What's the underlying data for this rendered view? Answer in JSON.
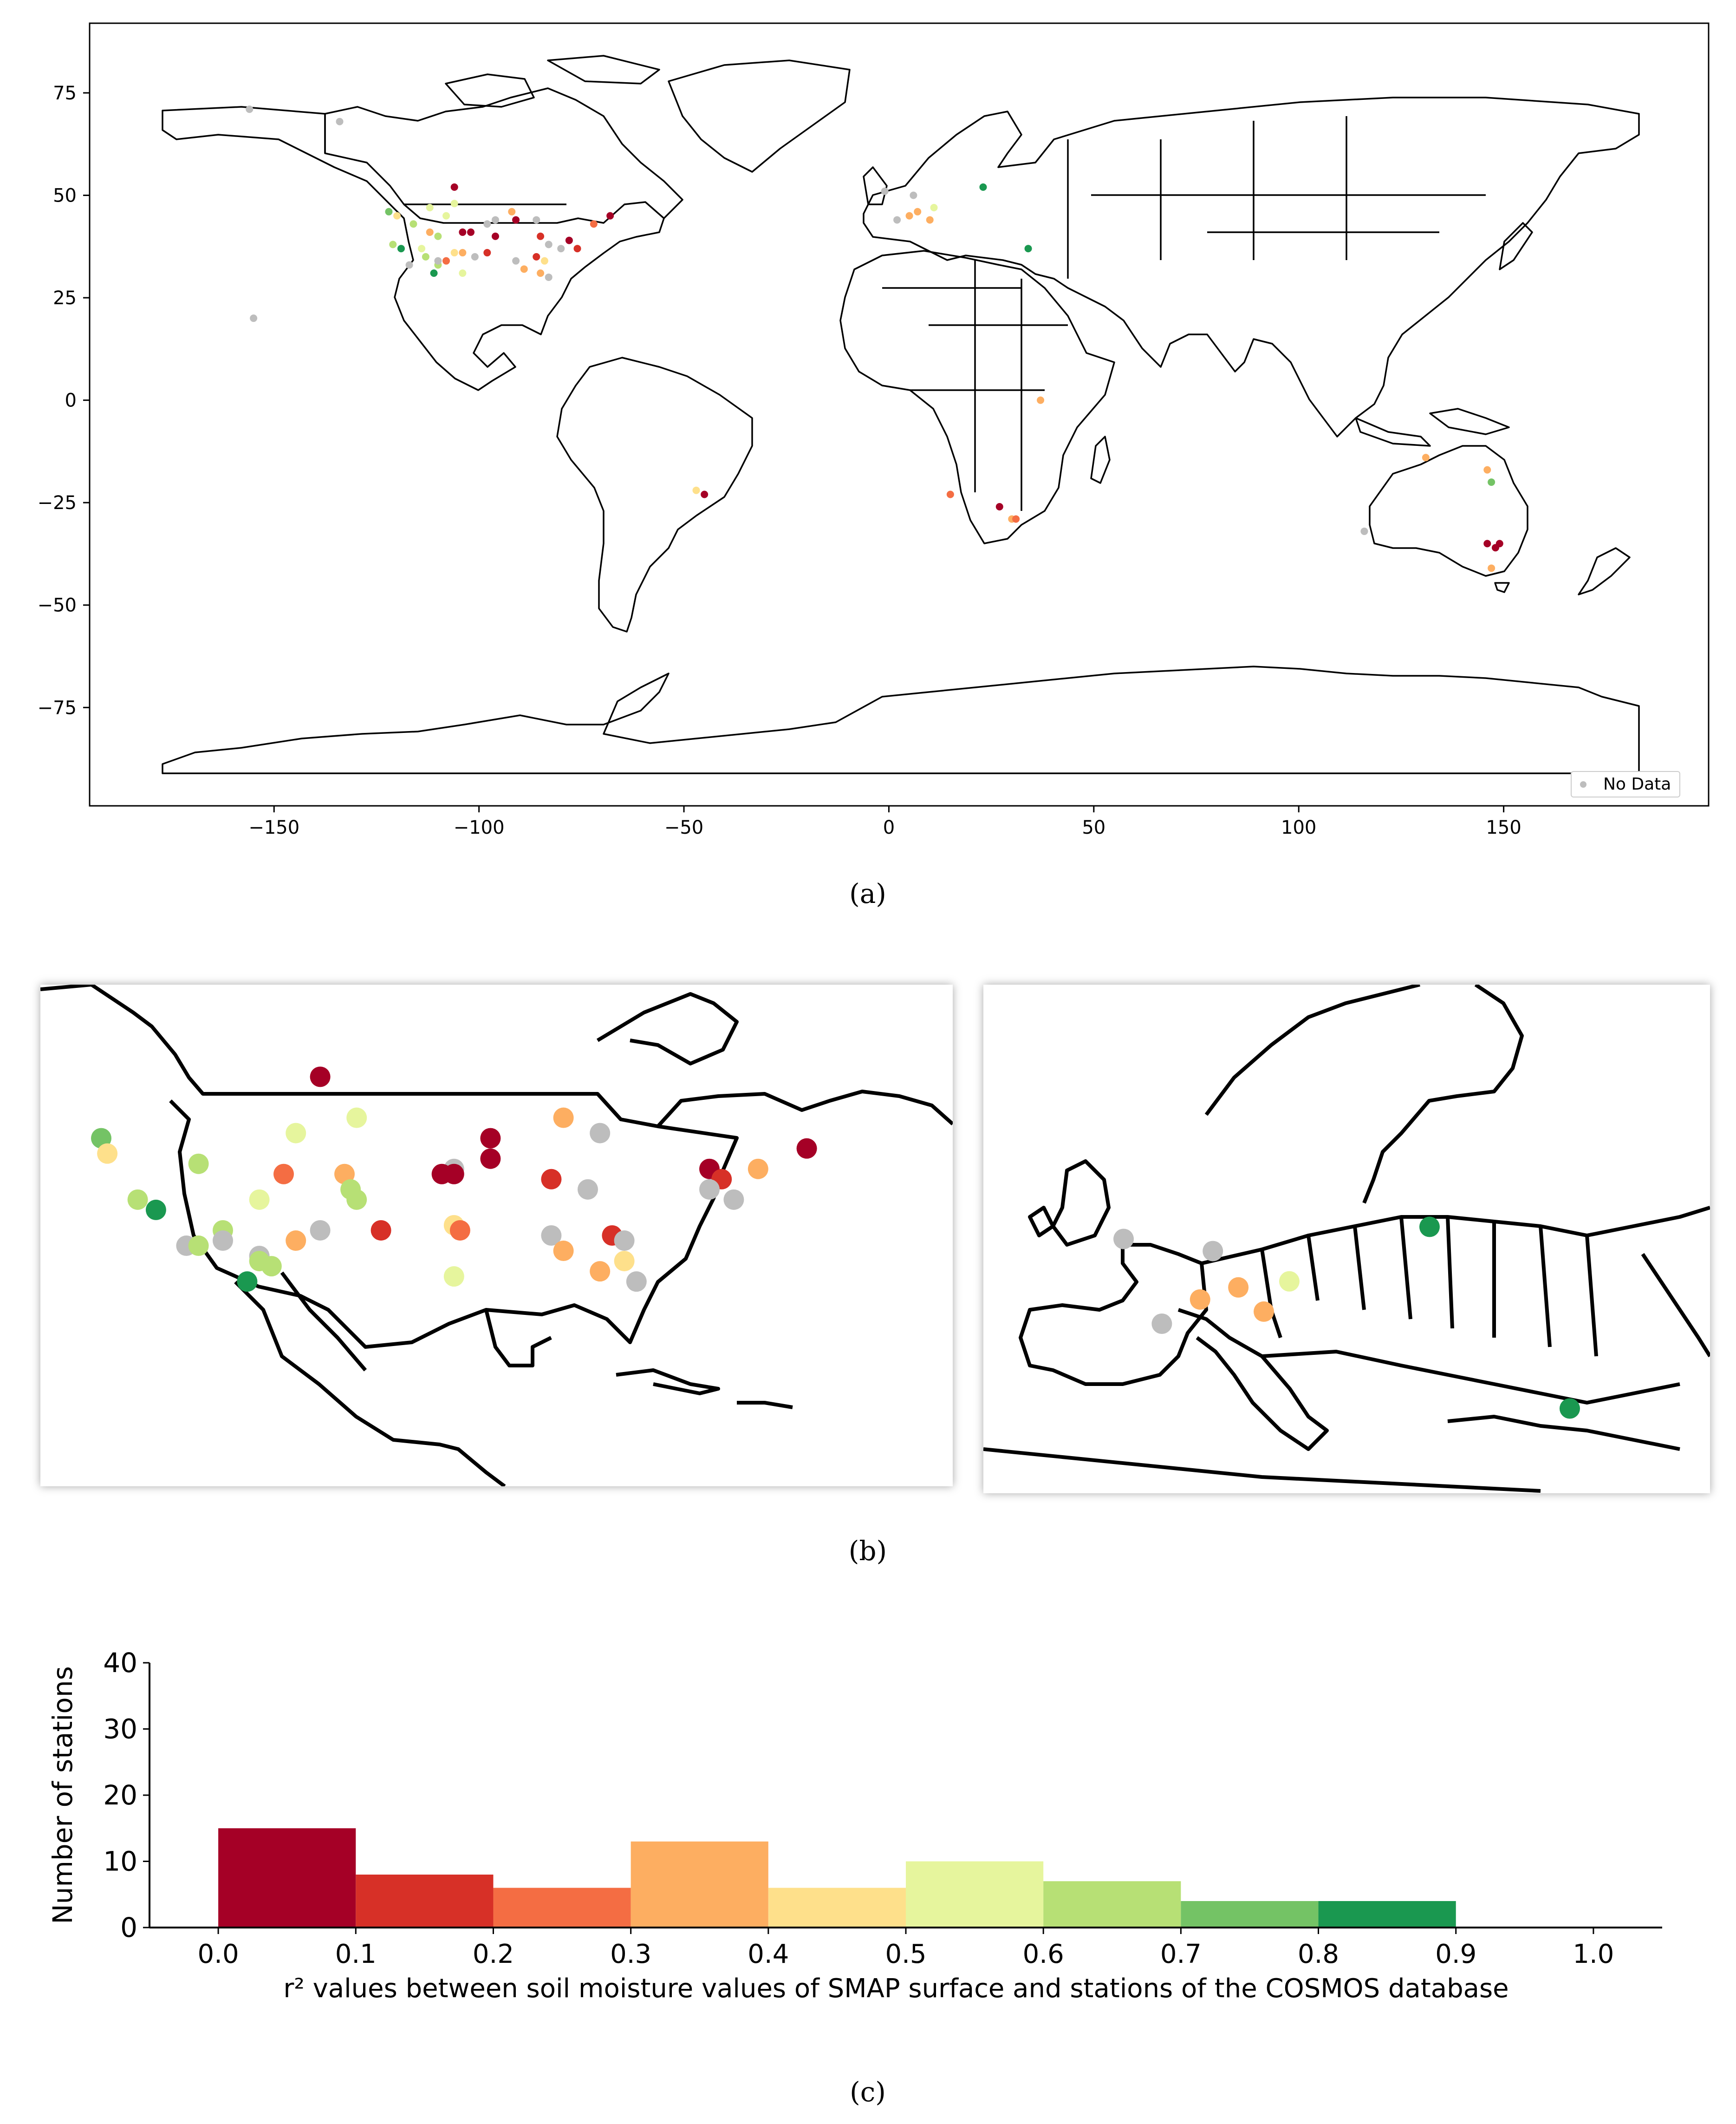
{
  "palette": [
    "#a50026",
    "#d73027",
    "#f46d43",
    "#fdae61",
    "#fee08b",
    "#e6f59d",
    "#b7e075",
    "#74c365",
    "#1a9850"
  ],
  "nodata_color": "#bdbdbd",
  "panel_a": {
    "caption": "(a)",
    "x_ticks": [
      -150,
      -100,
      -50,
      0,
      50,
      100,
      150
    ],
    "x_tick_labels": [
      "−150",
      "−100",
      "−50",
      "0",
      "50",
      "100",
      "150"
    ],
    "y_ticks": [
      75,
      50,
      25,
      0,
      -25,
      -50,
      -75
    ],
    "y_tick_labels": [
      "75",
      "50",
      "25",
      "0",
      "−25",
      "−50",
      "−75"
    ],
    "legend_label": "No Data"
  },
  "panel_b": {
    "caption": "(b)"
  },
  "panel_c": {
    "caption": "(c)"
  },
  "chart_data": [
    {
      "type": "scatter",
      "panel": "a",
      "xlim": [
        -195,
        200
      ],
      "ylim": [
        -99,
        92
      ],
      "grid": false,
      "legend": "bottom-right",
      "legend_entries": [
        "No Data"
      ],
      "points": [
        {
          "lon": -156,
          "lat": 71,
          "c": "nd"
        },
        {
          "lon": -134,
          "lat": 68,
          "c": "nd"
        },
        {
          "lon": -155,
          "lat": 20,
          "c": "nd"
        },
        {
          "lon": -106,
          "lat": 52,
          "c": 0
        },
        {
          "lon": -122,
          "lat": 46,
          "c": 7
        },
        {
          "lon": -120,
          "lat": 45,
          "c": 4
        },
        {
          "lon": -112,
          "lat": 47,
          "c": 5
        },
        {
          "lon": -106,
          "lat": 48,
          "c": 5
        },
        {
          "lon": -108,
          "lat": 45,
          "c": 5
        },
        {
          "lon": -92,
          "lat": 46,
          "c": 3
        },
        {
          "lon": -96,
          "lat": 44,
          "c": "nd"
        },
        {
          "lon": -91,
          "lat": 44,
          "c": 0
        },
        {
          "lon": -98,
          "lat": 43,
          "c": "nd"
        },
        {
          "lon": -86,
          "lat": 44,
          "c": "nd"
        },
        {
          "lon": -68,
          "lat": 45,
          "c": 0
        },
        {
          "lon": -72,
          "lat": 43,
          "c": 2
        },
        {
          "lon": -116,
          "lat": 43,
          "c": 6
        },
        {
          "lon": -112,
          "lat": 41,
          "c": 3
        },
        {
          "lon": -110,
          "lat": 40,
          "c": 6
        },
        {
          "lon": -121,
          "lat": 38,
          "c": 6
        },
        {
          "lon": -119,
          "lat": 37,
          "c": 8
        },
        {
          "lon": -114,
          "lat": 37,
          "c": 5
        },
        {
          "lon": -104,
          "lat": 41,
          "c": 0
        },
        {
          "lon": -102,
          "lat": 41,
          "c": 0
        },
        {
          "lon": -96,
          "lat": 40,
          "c": 0
        },
        {
          "lon": -85,
          "lat": 40,
          "c": 1
        },
        {
          "lon": -83,
          "lat": 38,
          "c": "nd"
        },
        {
          "lon": -78,
          "lat": 39,
          "c": 0
        },
        {
          "lon": -76,
          "lat": 37,
          "c": 1
        },
        {
          "lon": -80,
          "lat": 37,
          "c": "nd"
        },
        {
          "lon": -117,
          "lat": 33,
          "c": "nd"
        },
        {
          "lon": -113,
          "lat": 35,
          "c": 6
        },
        {
          "lon": -110,
          "lat": 33,
          "c": 6
        },
        {
          "lon": -110,
          "lat": 34,
          "c": "nd"
        },
        {
          "lon": -111,
          "lat": 31,
          "c": 8
        },
        {
          "lon": -106,
          "lat": 36,
          "c": 4
        },
        {
          "lon": -104,
          "lat": 36,
          "c": 3
        },
        {
          "lon": -98,
          "lat": 36,
          "c": 1
        },
        {
          "lon": -91,
          "lat": 34,
          "c": "nd"
        },
        {
          "lon": -89,
          "lat": 32,
          "c": 3
        },
        {
          "lon": -86,
          "lat": 35,
          "c": 1
        },
        {
          "lon": -84,
          "lat": 34,
          "c": 4
        },
        {
          "lon": -104,
          "lat": 31,
          "c": 5
        },
        {
          "lon": -85,
          "lat": 31,
          "c": 3
        },
        {
          "lon": -83,
          "lat": 30,
          "c": "nd"
        },
        {
          "lon": -108,
          "lat": 34,
          "c": 2
        },
        {
          "lon": -101,
          "lat": 35,
          "c": "nd"
        },
        {
          "lon": -1,
          "lat": 51,
          "c": "nd"
        },
        {
          "lon": 6,
          "lat": 50,
          "c": "nd"
        },
        {
          "lon": 7,
          "lat": 46,
          "c": 3
        },
        {
          "lon": 5,
          "lat": 45,
          "c": 3
        },
        {
          "lon": 10,
          "lat": 44,
          "c": 3
        },
        {
          "lon": 11,
          "lat": 47,
          "c": 5
        },
        {
          "lon": 23,
          "lat": 52,
          "c": 8
        },
        {
          "lon": 2,
          "lat": 44,
          "c": "nd"
        },
        {
          "lon": 34,
          "lat": 37,
          "c": 8
        },
        {
          "lon": 37,
          "lat": 0,
          "c": 3
        },
        {
          "lon": -47,
          "lat": -22,
          "c": 4
        },
        {
          "lon": -45,
          "lat": -23,
          "c": 0
        },
        {
          "lon": 15,
          "lat": -23,
          "c": 2
        },
        {
          "lon": 27,
          "lat": -26,
          "c": 0
        },
        {
          "lon": 30,
          "lat": -29,
          "c": 3
        },
        {
          "lon": 31,
          "lat": -29,
          "c": 2
        },
        {
          "lon": 131,
          "lat": -14,
          "c": 3
        },
        {
          "lon": 146,
          "lat": -17,
          "c": 3
        },
        {
          "lon": 147,
          "lat": -20,
          "c": 7
        },
        {
          "lon": 146,
          "lat": -35,
          "c": 0
        },
        {
          "lon": 149,
          "lat": -35,
          "c": 0
        },
        {
          "lon": 148,
          "lat": -36,
          "c": 0
        },
        {
          "lon": 147,
          "lat": -41,
          "c": 3
        },
        {
          "lon": 116,
          "lat": -32,
          "c": "nd"
        }
      ]
    },
    {
      "type": "scatter",
      "panel": "b-left",
      "xlim": [
        -130,
        -55
      ],
      "ylim": [
        13,
        62
      ],
      "points": [
        {
          "lon": -107,
          "lat": 53,
          "c": 0
        },
        {
          "lon": -125,
          "lat": 47,
          "c": 7
        },
        {
          "lon": -124.5,
          "lat": 45.5,
          "c": 4
        },
        {
          "lon": -109,
          "lat": 47.5,
          "c": 5
        },
        {
          "lon": -104,
          "lat": 49,
          "c": 5
        },
        {
          "lon": -117,
          "lat": 44.5,
          "c": 6
        },
        {
          "lon": -110,
          "lat": 43.5,
          "c": 2
        },
        {
          "lon": -105,
          "lat": 43.5,
          "c": 3
        },
        {
          "lon": -104.5,
          "lat": 42,
          "c": 6
        },
        {
          "lon": -104,
          "lat": 41,
          "c": 6
        },
        {
          "lon": -112,
          "lat": 41,
          "c": 5
        },
        {
          "lon": -122,
          "lat": 41,
          "c": 6
        },
        {
          "lon": -120.5,
          "lat": 40,
          "c": 8
        },
        {
          "lon": -115,
          "lat": 38,
          "c": 6
        },
        {
          "lon": -115,
          "lat": 37,
          "c": "nd"
        },
        {
          "lon": -109,
          "lat": 37,
          "c": 3
        },
        {
          "lon": -107,
          "lat": 38,
          "c": "nd"
        },
        {
          "lon": -118,
          "lat": 36.5,
          "c": "nd"
        },
        {
          "lon": -117,
          "lat": 36.5,
          "c": 6
        },
        {
          "lon": -112,
          "lat": 35.5,
          "c": "nd"
        },
        {
          "lon": -112,
          "lat": 35,
          "c": 6
        },
        {
          "lon": -111,
          "lat": 34.5,
          "c": 6
        },
        {
          "lon": -113,
          "lat": 33,
          "c": 8
        },
        {
          "lon": -102,
          "lat": 38,
          "c": 1
        },
        {
          "lon": -96,
          "lat": 38.5,
          "c": 4
        },
        {
          "lon": -95.5,
          "lat": 38,
          "c": 2
        },
        {
          "lon": -96,
          "lat": 44,
          "c": "nd"
        },
        {
          "lon": -96,
          "lat": 43.5,
          "c": 0
        },
        {
          "lon": -97,
          "lat": 43.5,
          "c": 0
        },
        {
          "lon": -93,
          "lat": 45,
          "c": 0
        },
        {
          "lon": -93,
          "lat": 47,
          "c": 0
        },
        {
          "lon": -87,
          "lat": 49,
          "c": 3
        },
        {
          "lon": -84,
          "lat": 47.5,
          "c": "nd"
        },
        {
          "lon": -88,
          "lat": 43,
          "c": 1
        },
        {
          "lon": -85,
          "lat": 42,
          "c": "nd"
        },
        {
          "lon": -88,
          "lat": 37.5,
          "c": "nd"
        },
        {
          "lon": -87,
          "lat": 36,
          "c": 3
        },
        {
          "lon": -83,
          "lat": 37.5,
          "c": 1
        },
        {
          "lon": -82,
          "lat": 37,
          "c": "nd"
        },
        {
          "lon": -82,
          "lat": 35,
          "c": 4
        },
        {
          "lon": -84,
          "lat": 34,
          "c": 3
        },
        {
          "lon": -81,
          "lat": 33,
          "c": "nd"
        },
        {
          "lon": -96,
          "lat": 33.5,
          "c": 5
        },
        {
          "lon": -75,
          "lat": 44,
          "c": 0
        },
        {
          "lon": -74,
          "lat": 43,
          "c": 1
        },
        {
          "lon": -75,
          "lat": 42,
          "c": "nd"
        },
        {
          "lon": -73,
          "lat": 41,
          "c": "nd"
        },
        {
          "lon": -71,
          "lat": 44,
          "c": 3
        },
        {
          "lon": -67,
          "lat": 46,
          "c": 0
        }
      ]
    },
    {
      "type": "scatter",
      "panel": "b-right",
      "xlim": [
        -12,
        45
      ],
      "ylim": [
        30,
        72
      ],
      "points": [
        {
          "lon": -1,
          "lat": 51,
          "c": "nd"
        },
        {
          "lon": 6,
          "lat": 50,
          "c": "nd"
        },
        {
          "lon": 8,
          "lat": 47,
          "c": 3
        },
        {
          "lon": 5,
          "lat": 46,
          "c": 3
        },
        {
          "lon": 10,
          "lat": 45,
          "c": 3
        },
        {
          "lon": 12,
          "lat": 47.5,
          "c": 5
        },
        {
          "lon": 2,
          "lat": 44,
          "c": "nd"
        },
        {
          "lon": 23,
          "lat": 52,
          "c": 8
        },
        {
          "lon": 34,
          "lat": 37,
          "c": 8
        }
      ]
    },
    {
      "type": "bar",
      "panel": "c",
      "categories": [
        "0.0–0.1",
        "0.1–0.2",
        "0.2–0.3",
        "0.3–0.4",
        "0.4–0.5",
        "0.5–0.6",
        "0.6–0.7",
        "0.7–0.8",
        "0.8–0.9",
        "0.9–1.0"
      ],
      "bin_edges": [
        0.0,
        0.1,
        0.2,
        0.3,
        0.4,
        0.5,
        0.6,
        0.7,
        0.8,
        0.9,
        1.0
      ],
      "values": [
        15,
        8,
        6,
        13,
        6,
        10,
        7,
        4,
        4,
        0
      ],
      "bar_colors": [
        "#a50026",
        "#d73027",
        "#f46d43",
        "#fdae61",
        "#fee08b",
        "#e6f59d",
        "#b7e075",
        "#74c365",
        "#1a9850",
        "#1a9850"
      ],
      "x_tick_labels": [
        "0.0",
        "0.1",
        "0.2",
        "0.3",
        "0.4",
        "0.5",
        "0.6",
        "0.7",
        "0.8",
        "0.9",
        "1.0"
      ],
      "y_tick_labels": [
        "0",
        "10",
        "20",
        "30",
        "40"
      ],
      "xlim": [
        -0.05,
        1.05
      ],
      "ylim": [
        0,
        40
      ],
      "xlabel": "r² values between soil moisture values of SMAP surface and stations of the COSMOS database",
      "ylabel": "Number of stations",
      "grid": false
    }
  ]
}
